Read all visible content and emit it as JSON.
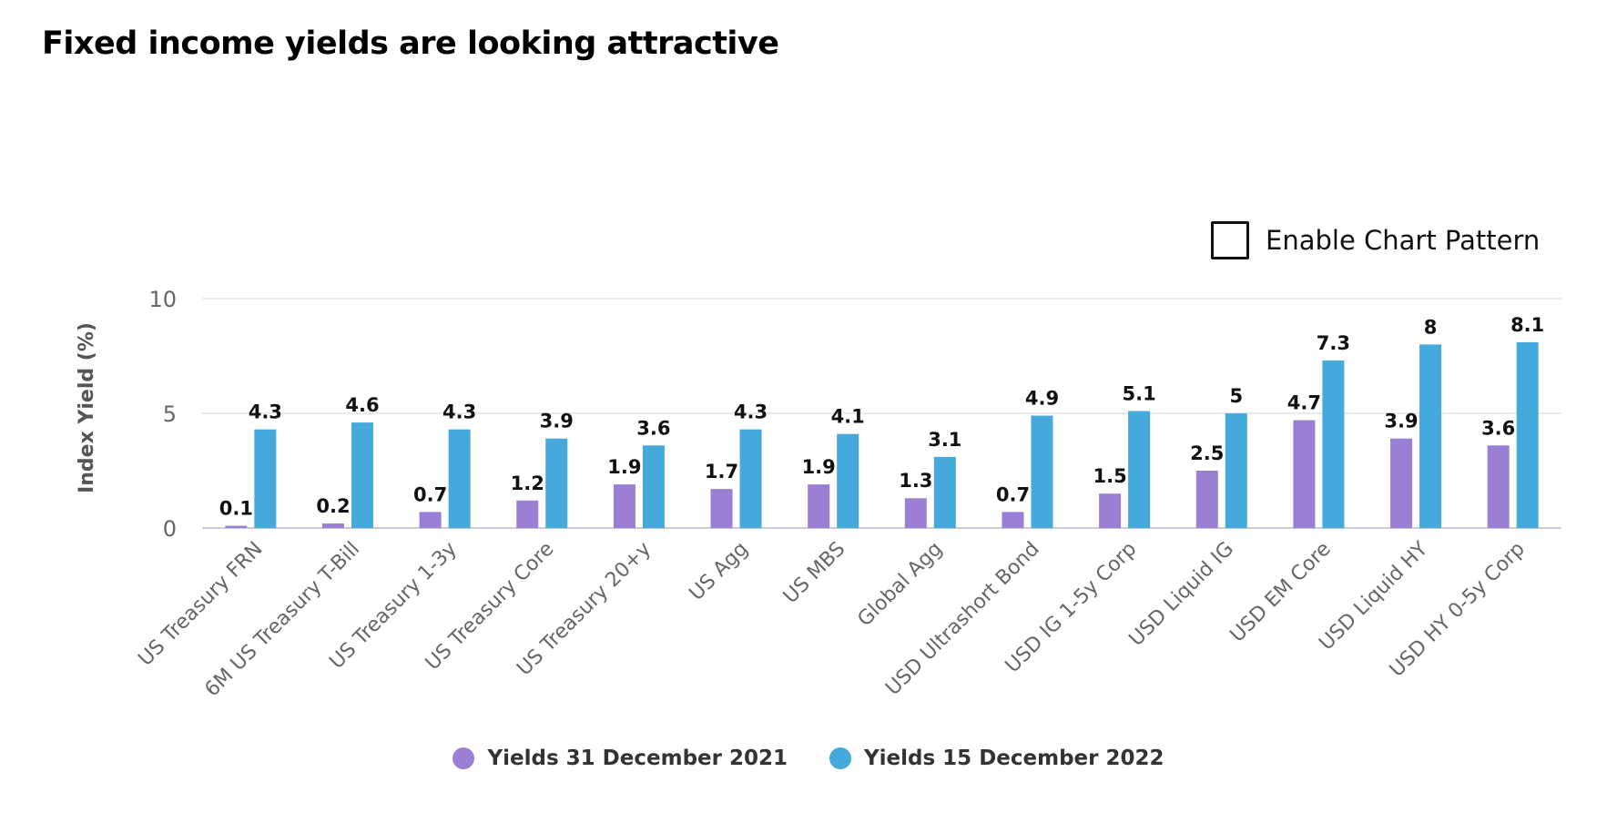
{
  "title": "Fixed income yields are looking attractive",
  "pattern_toggle": {
    "label": "Enable Chart Pattern",
    "checked": false
  },
  "colors": {
    "series_2021": "#9b7fd4",
    "series_2022": "#45a9dc",
    "grid": "#dadde3",
    "axis_text": "#666666"
  },
  "chart_data": {
    "type": "bar",
    "title": "Fixed income yields are looking attractive",
    "ylabel": "Index Yield (%)",
    "xlabel": "",
    "ylim": [
      0,
      10
    ],
    "yticks": [
      0,
      5,
      10
    ],
    "grid": true,
    "legend_position": "bottom",
    "categories": [
      "US Treasury FRN",
      "6M US Treasury T-Bill",
      "US Treasury 1-3y",
      "US Treasury Core",
      "US Treasury 20+y",
      "US Agg",
      "US MBS",
      "Global Agg",
      "USD Ultrashort Bond",
      "USD IG 1-5y Corp",
      "USD Liquid IG",
      "USD EM Core",
      "USD Liquid HY",
      "USD HY 0-5y Corp"
    ],
    "series": [
      {
        "name": "Yields 31 December 2021",
        "color": "#9b7fd4",
        "values": [
          0.1,
          0.2,
          0.7,
          1.2,
          1.9,
          1.7,
          1.9,
          1.3,
          0.7,
          1.5,
          2.5,
          4.7,
          3.9,
          3.6
        ]
      },
      {
        "name": "Yields 15 December 2022",
        "color": "#45a9dc",
        "values": [
          4.3,
          4.6,
          4.3,
          3.9,
          3.6,
          4.3,
          4.1,
          3.1,
          4.9,
          5.1,
          5,
          7.3,
          8,
          8.1
        ]
      }
    ]
  }
}
